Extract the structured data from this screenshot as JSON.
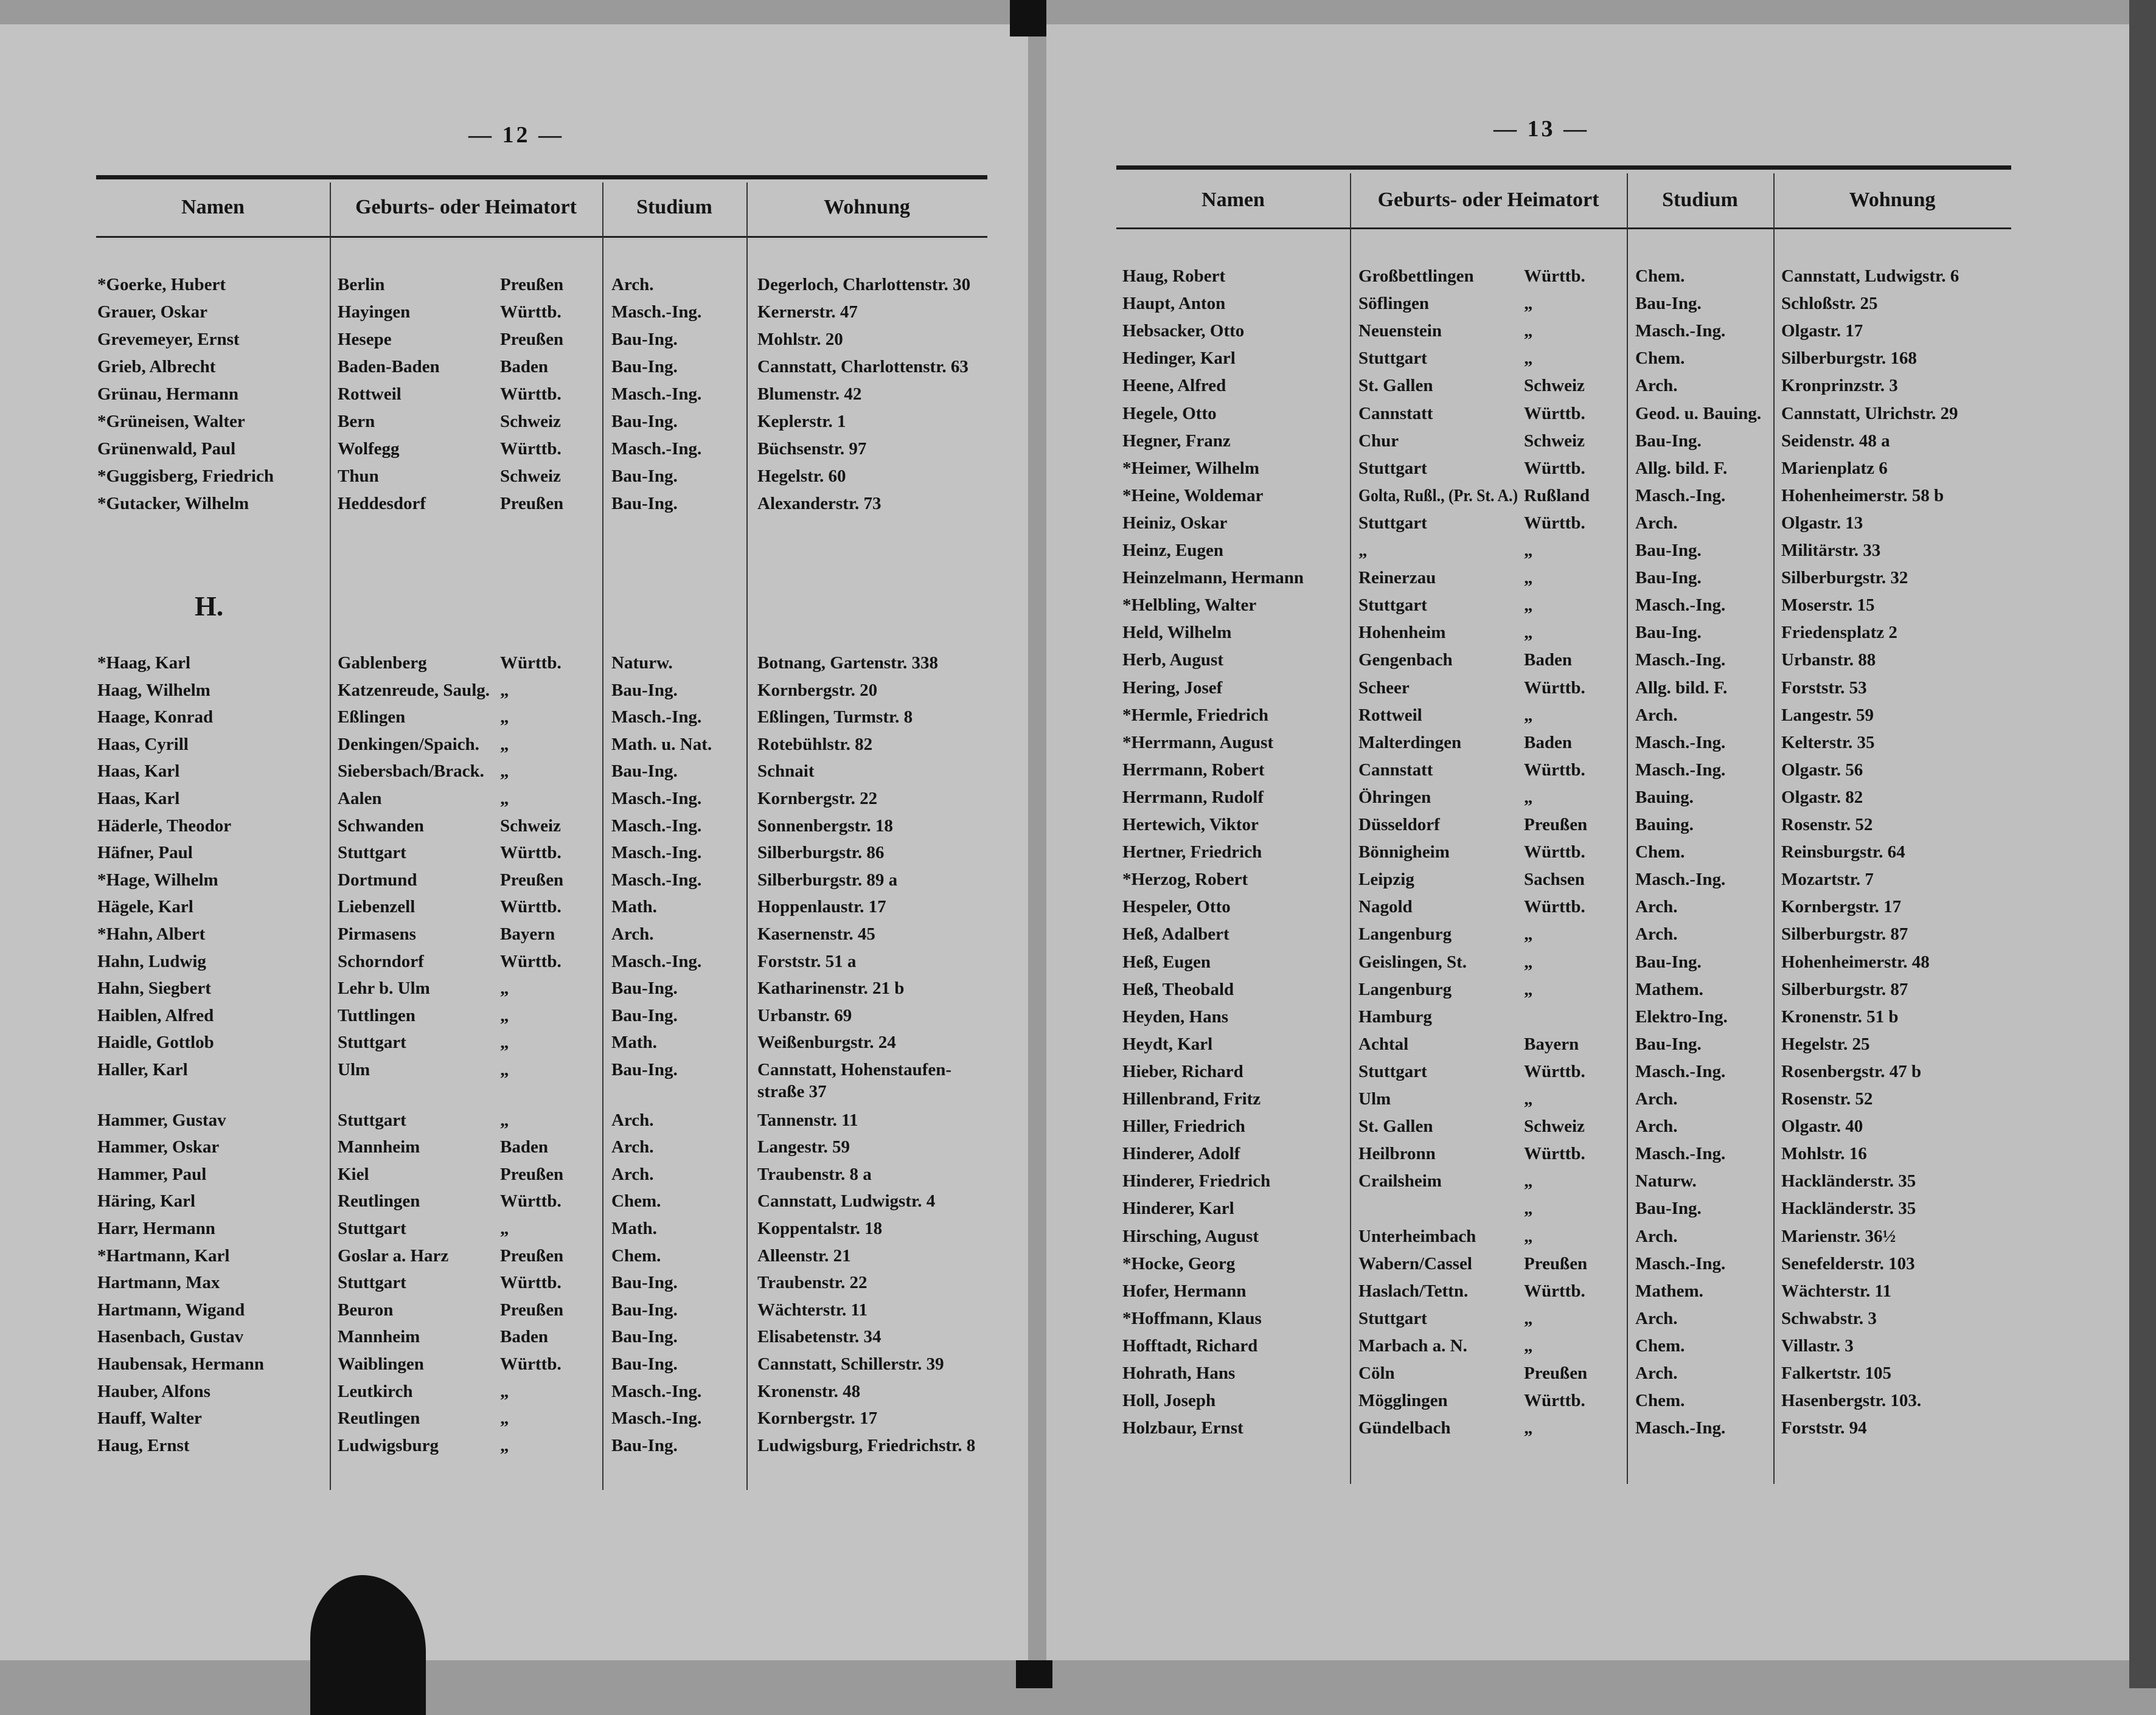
{
  "left_page": {
    "page_number": "— 12 —",
    "headers": {
      "name": "Namen",
      "origin": "Geburts- oder Heimatort",
      "study": "Studium",
      "residence": "Wohnung"
    },
    "rows_g": [
      {
        "name": "*Goerke, Hubert",
        "place": "Berlin",
        "state": "Preußen",
        "study": "Arch.",
        "address": "Degerloch, Charlottenstr. 30"
      },
      {
        "name": "Grauer, Oskar",
        "place": "Hayingen",
        "state": "Württb.",
        "study": "Masch.-Ing.",
        "address": "Kernerstr. 47"
      },
      {
        "name": "Grevemeyer, Ernst",
        "place": "Hesepe",
        "state": "Preußen",
        "study": "Bau-Ing.",
        "address": "Mohlstr. 20"
      },
      {
        "name": "Grieb, Albrecht",
        "place": "Baden-Baden",
        "state": "Baden",
        "study": "Bau-Ing.",
        "address": "Cannstatt, Charlottenstr. 63"
      },
      {
        "name": "Grünau, Hermann",
        "place": "Rottweil",
        "state": "Württb.",
        "study": "Masch.-Ing.",
        "address": "Blumenstr. 42"
      },
      {
        "name": "*Grüneisen, Walter",
        "place": "Bern",
        "state": "Schweiz",
        "study": "Bau-Ing.",
        "address": "Keplerstr. 1"
      },
      {
        "name": "Grünenwald, Paul",
        "place": "Wolfegg",
        "state": "Württb.",
        "study": "Masch.-Ing.",
        "address": "Büchsenstr. 97"
      },
      {
        "name": "*Guggisberg, Friedrich",
        "place": "Thun",
        "state": "Schweiz",
        "study": "Bau-Ing.",
        "address": "Hegelstr. 60"
      },
      {
        "name": "*Gutacker, Wilhelm",
        "place": "Heddesdorf",
        "state": "Preußen",
        "study": "Bau-Ing.",
        "address": "Alexanderstr. 73"
      }
    ],
    "section_letter": "H.",
    "rows_h": [
      {
        "name": "*Haag, Karl",
        "place": "Gablenberg",
        "state": "Württb.",
        "study": "Naturw.",
        "address": "Botnang, Gartenstr. 338"
      },
      {
        "name": "Haag, Wilhelm",
        "place": "Katzenreude, Saulg.",
        "state": "„",
        "study": "Bau-Ing.",
        "address": "Kornbergstr. 20"
      },
      {
        "name": "Haage, Konrad",
        "place": "Eßlingen",
        "state": "„",
        "study": "Masch.-Ing.",
        "address": "Eßlingen, Turmstr. 8"
      },
      {
        "name": "Haas, Cyrill",
        "place": "Denkingen/Spaich.",
        "state": "„",
        "study": "Math. u. Nat.",
        "address": "Rotebühlstr. 82"
      },
      {
        "name": "Haas, Karl",
        "place": "Siebersbach/Brack.",
        "state": "„",
        "study": "Bau-Ing.",
        "address": "Schnait"
      },
      {
        "name": "Haas, Karl",
        "place": "Aalen",
        "state": "„",
        "study": "Masch.-Ing.",
        "address": "Kornbergstr. 22"
      },
      {
        "name": "Häderle, Theodor",
        "place": "Schwanden",
        "state": "Schweiz",
        "study": "Masch.-Ing.",
        "address": "Sonnenbergstr. 18"
      },
      {
        "name": "Häfner, Paul",
        "place": "Stuttgart",
        "state": "Württb.",
        "study": "Masch.-Ing.",
        "address": "Silberburgstr. 86"
      },
      {
        "name": "*Hage, Wilhelm",
        "place": "Dortmund",
        "state": "Preußen",
        "study": "Masch.-Ing.",
        "address": "Silberburgstr. 89 a"
      },
      {
        "name": "Hägele, Karl",
        "place": "Liebenzell",
        "state": "Württb.",
        "study": "Math.",
        "address": "Hoppenlaustr. 17"
      },
      {
        "name": "*Hahn, Albert",
        "place": "Pirmasens",
        "state": "Bayern",
        "study": "Arch.",
        "address": "Kasernenstr. 45"
      },
      {
        "name": "Hahn, Ludwig",
        "place": "Schorndorf",
        "state": "Württb.",
        "study": "Masch.-Ing.",
        "address": "Forststr. 51 a"
      },
      {
        "name": "Hahn, Siegbert",
        "place": "Lehr b. Ulm",
        "state": "„",
        "study": "Bau-Ing.",
        "address": "Katharinenstr. 21 b"
      },
      {
        "name": "Haiblen, Alfred",
        "place": "Tuttlingen",
        "state": "„",
        "study": "Bau-Ing.",
        "address": "Urbanstr. 69"
      },
      {
        "name": "Haidle, Gottlob",
        "place": "Stuttgart",
        "state": "„",
        "study": "Math.",
        "address": "Weißenburgstr. 24"
      },
      {
        "name": "Haller, Karl",
        "place": "Ulm",
        "state": "„",
        "study": "Bau-Ing.",
        "address": "Cannstatt, Hohenstaufen-",
        "address2": "straße 37"
      },
      {
        "name": "Hammer, Gustav",
        "place": "Stuttgart",
        "state": "„",
        "study": "Arch.",
        "address": "Tannenstr. 11"
      },
      {
        "name": "Hammer, Oskar",
        "place": "Mannheim",
        "state": "Baden",
        "study": "Arch.",
        "address": "Langestr. 59"
      },
      {
        "name": "Hammer, Paul",
        "place": "Kiel",
        "state": "Preußen",
        "study": "Arch.",
        "address": "Traubenstr. 8 a"
      },
      {
        "name": "Häring, Karl",
        "place": "Reutlingen",
        "state": "Württb.",
        "study": "Chem.",
        "address": "Cannstatt, Ludwigstr. 4"
      },
      {
        "name": "Harr, Hermann",
        "place": "Stuttgart",
        "state": "„",
        "study": "Math.",
        "address": "Koppentalstr. 18"
      },
      {
        "name": "*Hartmann, Karl",
        "place": "Goslar a. Harz",
        "state": "Preußen",
        "study": "Chem.",
        "address": "Alleenstr. 21"
      },
      {
        "name": "Hartmann, Max",
        "place": "Stuttgart",
        "state": "Württb.",
        "study": "Bau-Ing.",
        "address": "Traubenstr. 22"
      },
      {
        "name": "Hartmann, Wigand",
        "place": "Beuron",
        "state": "Preußen",
        "study": "Bau-Ing.",
        "address": "Wächterstr. 11"
      },
      {
        "name": "Hasenbach, Gustav",
        "place": "Mannheim",
        "state": "Baden",
        "study": "Bau-Ing.",
        "address": "Elisabetenstr. 34"
      },
      {
        "name": "Haubensak, Hermann",
        "place": "Waiblingen",
        "state": "Württb.",
        "study": "Bau-Ing.",
        "address": "Cannstatt, Schillerstr. 39"
      },
      {
        "name": "Hauber, Alfons",
        "place": "Leutkirch",
        "state": "„",
        "study": "Masch.-Ing.",
        "address": "Kronenstr. 48"
      },
      {
        "name": "Hauff, Walter",
        "place": "Reutlingen",
        "state": "„",
        "study": "Masch.-Ing.",
        "address": "Kornbergstr. 17"
      },
      {
        "name": "Haug, Ernst",
        "place": "Ludwigsburg",
        "state": "„",
        "study": "Bau-Ing.",
        "address": "Ludwigsburg, Friedrichstr. 8"
      }
    ]
  },
  "right_page": {
    "page_number": "— 13 —",
    "headers": {
      "name": "Namen",
      "origin": "Geburts- oder Heimatort",
      "study": "Studium",
      "residence": "Wohnung"
    },
    "rows": [
      {
        "name": "Haug, Robert",
        "place": "Großbettlingen",
        "state": "Württb.",
        "study": "Chem.",
        "address": "Cannstatt, Ludwigstr. 6"
      },
      {
        "name": "Haupt, Anton",
        "place": "Söflingen",
        "state": "„",
        "study": "Bau-Ing.",
        "address": "Schloßstr. 25"
      },
      {
        "name": "Hebsacker, Otto",
        "place": "Neuenstein",
        "state": "„",
        "study": "Masch.-Ing.",
        "address": "Olgastr. 17"
      },
      {
        "name": "Hedinger, Karl",
        "place": "Stuttgart",
        "state": "„",
        "study": "Chem.",
        "address": "Silberburgstr. 168"
      },
      {
        "name": "Heene, Alfred",
        "place": "St. Gallen",
        "state": "Schweiz",
        "study": "Arch.",
        "address": "Kronprinzstr. 3"
      },
      {
        "name": "Hegele, Otto",
        "place": "Cannstatt",
        "state": "Württb.",
        "study": "Geod. u. Bauing.",
        "address": "Cannstatt, Ulrichstr. 29"
      },
      {
        "name": "Hegner, Franz",
        "place": "Chur",
        "state": "Schweiz",
        "study": "Bau-Ing.",
        "address": "Seidenstr. 48 a"
      },
      {
        "name": "*Heimer, Wilhelm",
        "place": "Stuttgart",
        "state": "Württb.",
        "study": "Allg. bild. F.",
        "address": "Marienplatz 6"
      },
      {
        "name": "*Heine, Woldemar",
        "place": "Golta, Rußl., (Pr. St. A.)",
        "state": "Rußland",
        "study": "Masch.-Ing.",
        "address": "Hohenheimerstr. 58 b"
      },
      {
        "name": "Heiniz, Oskar",
        "place": "Stuttgart",
        "state": "Württb.",
        "study": "Arch.",
        "address": "Olgastr. 13"
      },
      {
        "name": "Heinz, Eugen",
        "place": "„",
        "state": "„",
        "study": "Bau-Ing.",
        "address": "Militärstr. 33"
      },
      {
        "name": "Heinzelmann, Hermann",
        "place": "Reinerzau",
        "state": "„",
        "study": "Bau-Ing.",
        "address": "Silberburgstr. 32"
      },
      {
        "name": "*Helbling, Walter",
        "place": "Stuttgart",
        "state": "„",
        "study": "Masch.-Ing.",
        "address": "Moserstr. 15"
      },
      {
        "name": "Held, Wilhelm",
        "place": "Hohenheim",
        "state": "„",
        "study": "Bau-Ing.",
        "address": "Friedensplatz 2"
      },
      {
        "name": "Herb, August",
        "place": "Gengenbach",
        "state": "Baden",
        "study": "Masch.-Ing.",
        "address": "Urbanstr. 88"
      },
      {
        "name": "Hering, Josef",
        "place": "Scheer",
        "state": "Württb.",
        "study": "Allg. bild. F.",
        "address": "Forststr. 53"
      },
      {
        "name": "*Hermle, Friedrich",
        "place": "Rottweil",
        "state": "„",
        "study": "Arch.",
        "address": "Langestr. 59"
      },
      {
        "name": "*Herrmann, August",
        "place": "Malterdingen",
        "state": "Baden",
        "study": "Masch.-Ing.",
        "address": "Kelterstr. 35"
      },
      {
        "name": "Herrmann, Robert",
        "place": "Cannstatt",
        "state": "Württb.",
        "study": "Masch.-Ing.",
        "address": "Olgastr. 56"
      },
      {
        "name": "Herrmann, Rudolf",
        "place": "Öhringen",
        "state": "„",
        "study": "Bauing.",
        "address": "Olgastr. 82"
      },
      {
        "name": "Hertewich, Viktor",
        "place": "Düsseldorf",
        "state": "Preußen",
        "study": "Bauing.",
        "address": "Rosenstr. 52"
      },
      {
        "name": "Hertner, Friedrich",
        "place": "Bönnigheim",
        "state": "Württb.",
        "study": "Chem.",
        "address": "Reinsburgstr. 64"
      },
      {
        "name": "*Herzog, Robert",
        "place": "Leipzig",
        "state": "Sachsen",
        "study": "Masch.-Ing.",
        "address": "Mozartstr. 7"
      },
      {
        "name": "Hespeler, Otto",
        "place": "Nagold",
        "state": "Württb.",
        "study": "Arch.",
        "address": "Kornbergstr. 17"
      },
      {
        "name": "Heß, Adalbert",
        "place": "Langenburg",
        "state": "„",
        "study": "Arch.",
        "address": "Silberburgstr. 87"
      },
      {
        "name": "Heß, Eugen",
        "place": "Geislingen, St.",
        "state": "„",
        "study": "Bau-Ing.",
        "address": "Hohenheimerstr. 48"
      },
      {
        "name": "Heß, Theobald",
        "place": "Langenburg",
        "state": "„",
        "study": "Mathem.",
        "address": "Silberburgstr. 87"
      },
      {
        "name": "Heyden, Hans",
        "place": "Hamburg",
        "state": "",
        "study": "Elektro-Ing.",
        "address": "Kronenstr. 51 b"
      },
      {
        "name": "Heydt, Karl",
        "place": "Achtal",
        "state": "Bayern",
        "study": "Bau-Ing.",
        "address": "Hegelstr. 25"
      },
      {
        "name": "Hieber, Richard",
        "place": "Stuttgart",
        "state": "Württb.",
        "study": "Masch.-Ing.",
        "address": "Rosenbergstr. 47 b"
      },
      {
        "name": "Hillenbrand, Fritz",
        "place": "Ulm",
        "state": "„",
        "study": "Arch.",
        "address": "Rosenstr. 52"
      },
      {
        "name": "Hiller, Friedrich",
        "place": "St. Gallen",
        "state": "Schweiz",
        "study": "Arch.",
        "address": "Olgastr. 40"
      },
      {
        "name": "Hinderer, Adolf",
        "place": "Heilbronn",
        "state": "Württb.",
        "study": "Masch.-Ing.",
        "address": "Mohlstr. 16"
      },
      {
        "name": "Hinderer, Friedrich",
        "place": "Crailsheim",
        "state": "„",
        "study": "Naturw.",
        "address": "Hackländerstr. 35"
      },
      {
        "name": "Hinderer, Karl",
        "place": "",
        "state": "„",
        "study": "Bau-Ing.",
        "address": "Hackländerstr. 35"
      },
      {
        "name": "Hirsching, August",
        "place": "Unterheimbach",
        "state": "„",
        "study": "Arch.",
        "address": "Marienstr. 36½"
      },
      {
        "name": "*Hocke, Georg",
        "place": "Wabern/Cassel",
        "state": "Preußen",
        "study": "Masch.-Ing.",
        "address": "Senefelderstr. 103"
      },
      {
        "name": "Hofer, Hermann",
        "place": "Haslach/Tettn.",
        "state": "Württb.",
        "study": "Mathem.",
        "address": "Wächterstr. 11"
      },
      {
        "name": "*Hoffmann, Klaus",
        "place": "Stuttgart",
        "state": "„",
        "study": "Arch.",
        "address": "Schwabstr. 3"
      },
      {
        "name": "Hofftadt, Richard",
        "place": "Marbach a. N.",
        "state": "„",
        "study": "Chem.",
        "address": "Villastr. 3"
      },
      {
        "name": "Hohrath, Hans",
        "place": "Cöln",
        "state": "Preußen",
        "study": "Arch.",
        "address": "Falkertstr. 105"
      },
      {
        "name": "Holl, Joseph",
        "place": "Mögglingen",
        "state": "Württb.",
        "study": "Chem.",
        "address": "Hasenbergstr. 103."
      },
      {
        "name": "Holzbaur, Ernst",
        "place": "Gündelbach",
        "state": "„",
        "study": "Masch.-Ing.",
        "address": "Forststr. 94"
      }
    ]
  }
}
